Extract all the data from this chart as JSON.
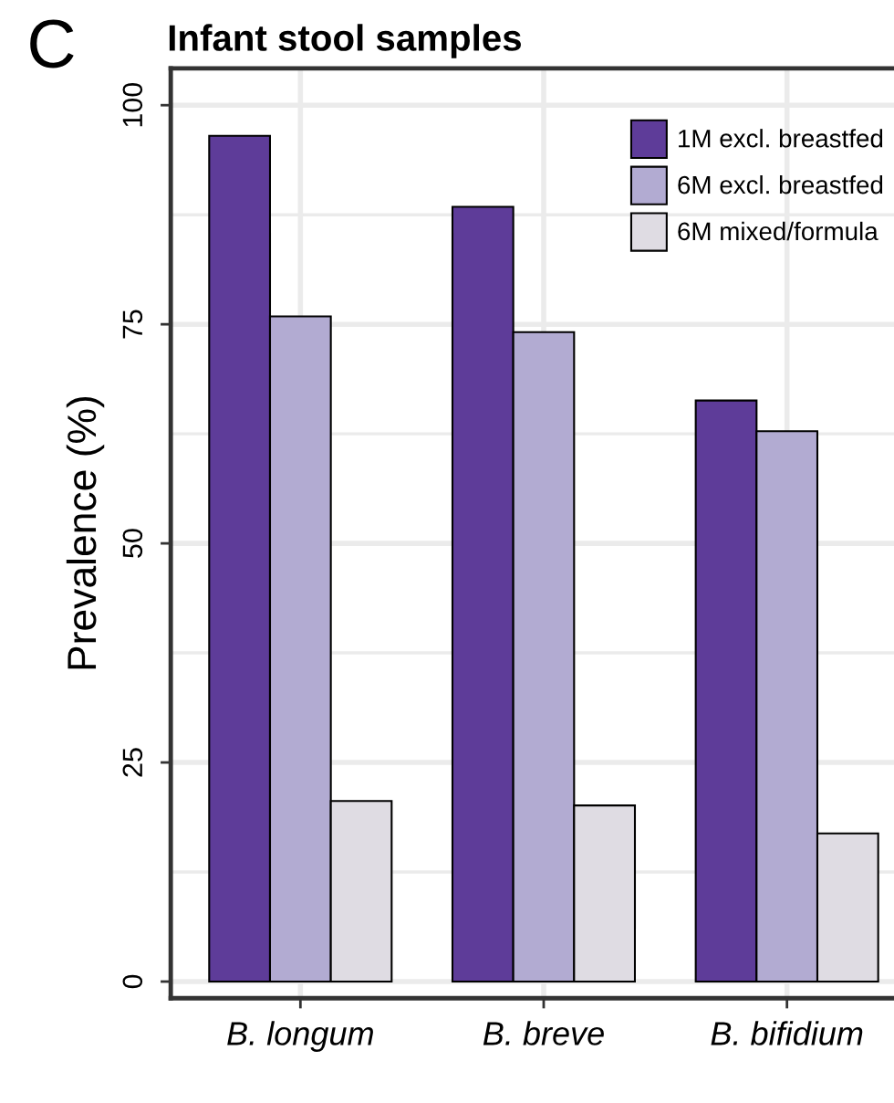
{
  "chart_data": {
    "type": "bar",
    "title": "Infant stool samples",
    "ylabel": "Prevalence (%)",
    "annotations": [
      "C"
    ],
    "categories": [
      "B. longum",
      "B. breve",
      "B. bifidium"
    ],
    "series": [
      {
        "name": "1M excl. breastfed",
        "color": "#5e3c99",
        "values": [
          96.5,
          88.4,
          66.3
        ]
      },
      {
        "name": "6M excl. breastfed",
        "color": "#b2abd2",
        "values": [
          75.9,
          74.1,
          62.8
        ]
      },
      {
        "name": "6M mixed/formula",
        "color": "#dfdce3",
        "values": [
          20.6,
          20.1,
          16.9
        ]
      }
    ],
    "ylim": [
      -1.9,
      104.2
    ],
    "yticks": [
      0,
      25,
      50,
      75,
      100
    ],
    "grid": true,
    "legend": "top right"
  }
}
